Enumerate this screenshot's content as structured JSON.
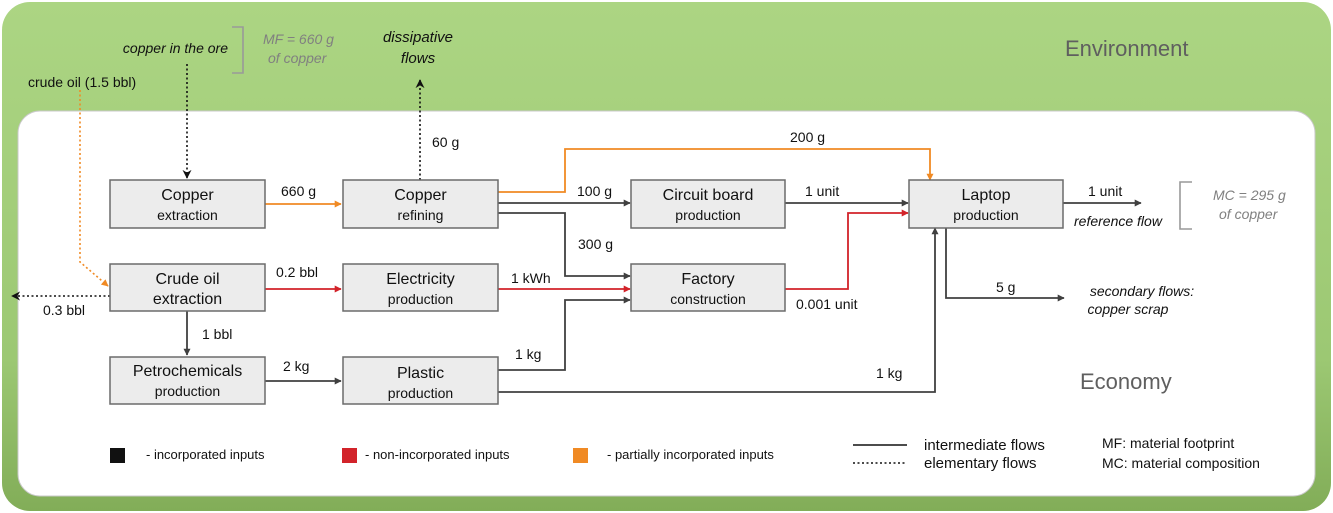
{
  "regions": {
    "environment": "Environment",
    "economy": "Economy"
  },
  "processes": {
    "copper_extraction": [
      "Copper",
      "extraction"
    ],
    "copper_refining": [
      "Copper",
      "refining"
    ],
    "circuit_board": [
      "Circuit board",
      "production"
    ],
    "laptop": [
      "Laptop",
      "production"
    ],
    "crude_oil_extraction": [
      "Crude oil",
      "extraction"
    ],
    "electricity": [
      "Electricity",
      "production"
    ],
    "factory": [
      "Factory",
      "construction"
    ],
    "petrochemicals": [
      "Petrochemicals",
      "production"
    ],
    "plastic": [
      "Plastic",
      "production"
    ]
  },
  "env_labels": {
    "copper_in_ore": "copper in the ore",
    "mf_line1": "MF = 660 g",
    "mf_line2": "of copper",
    "dissipative1": "dissipative",
    "dissipative2": "flows",
    "crude_oil_input": "crude oil (1.5 bbl)",
    "mc_line1": "MC = 295 g",
    "mc_line2": "of copper",
    "reference_flow": "reference flow",
    "secondary1": "secondary flows:",
    "secondary2": "copper scrap"
  },
  "flow_labels": {
    "f_60g": "60 g",
    "f_200g": "200 g",
    "f_660g": "660 g",
    "f_100g": "100 g",
    "f_1unit_cb": "1 unit",
    "f_1unit_ref": "1 unit",
    "f_300g": "300 g",
    "f_02bbl": "0.2 bbl",
    "f_1kwh": "1 kWh",
    "f_0001unit": "0.001 unit",
    "f_03bbl": "0.3 bbl",
    "f_1bbl": "1 bbl",
    "f_5g": "5 g",
    "f_2kg": "2 kg",
    "f_1kg_factory": "1 kg",
    "f_1kg_laptop": "1 kg"
  },
  "legend": {
    "incorporated": "- incorporated inputs",
    "non_incorporated": "- non-incorporated inputs",
    "partially": "- partially incorporated inputs",
    "intermediate": "intermediate flows",
    "elementary": "elementary flows",
    "mf": "MF: material footprint",
    "mc": "MC: material composition"
  },
  "colors": {
    "black_flow": "#404040",
    "red_flow": "#d2232a",
    "orange_flow": "#f08a24",
    "env_green": "#a6d27c",
    "economy_bg": "#ffffff"
  }
}
